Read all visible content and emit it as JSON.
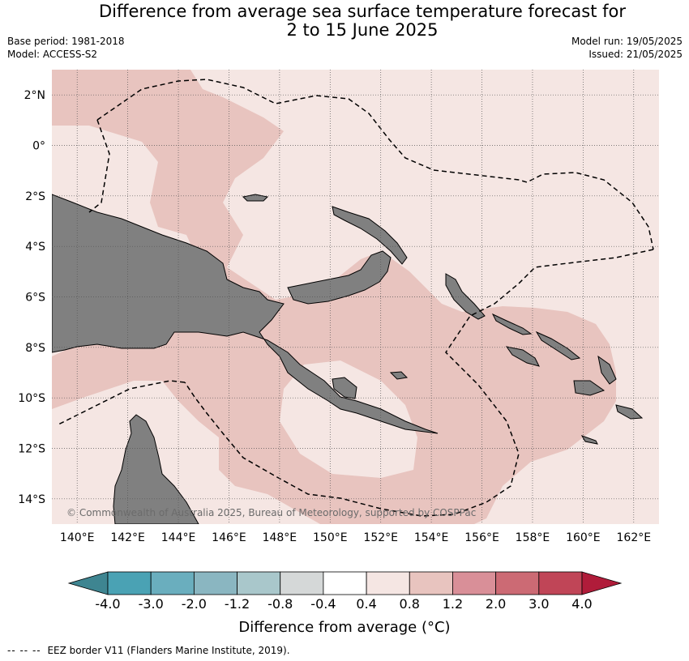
{
  "header": {
    "title_line1": "Difference from average sea surface temperature forecast for",
    "title_line2": "2 to 15 June 2025",
    "base_period": "Base period: 1981-2018",
    "model": "Model: ACCESS-S2",
    "model_run": "Model run: 19/05/2025",
    "issued": "Issued: 21/05/2025"
  },
  "map": {
    "lon_range": [
      139,
      163
    ],
    "lat_range": [
      -15,
      3
    ],
    "lon_ticks": [
      "140°E",
      "142°E",
      "144°E",
      "146°E",
      "148°E",
      "150°E",
      "152°E",
      "154°E",
      "156°E",
      "158°E",
      "160°E",
      "162°E"
    ],
    "lat_ticks": [
      "2°N",
      "0°",
      "2°S",
      "4°S",
      "6°S",
      "8°S",
      "10°S",
      "12°S",
      "14°S"
    ],
    "copyright": "© Commonwealth of Australia 2025, Bureau of Meteorology, supported by COSPPac",
    "colors": {
      "land": "#808080",
      "band_0_4_0_8": "#f5e6e3",
      "band_0_8_1_2": "#e8c4bf"
    }
  },
  "colorbar": {
    "title": "Difference from average (°C)",
    "labels": [
      "-4.0",
      "-3.0",
      "-2.0",
      "-1.2",
      "-0.8",
      "-0.4",
      "0.4",
      "0.8",
      "1.2",
      "2.0",
      "3.0",
      "4.0"
    ],
    "colors": [
      "#3e8591",
      "#4aa2b4",
      "#6aaebe",
      "#8ab6c1",
      "#a9c7cb",
      "#d5d8d8",
      "#ffffff",
      "#f5e6e3",
      "#e8c4bf",
      "#d98f98",
      "#cc6a74",
      "#c04557",
      "#b01c3a"
    ]
  },
  "footnote": {
    "dashes": "-- -- --",
    "text": "EEZ border V11 (Flanders Marine Institute, 2019)."
  }
}
